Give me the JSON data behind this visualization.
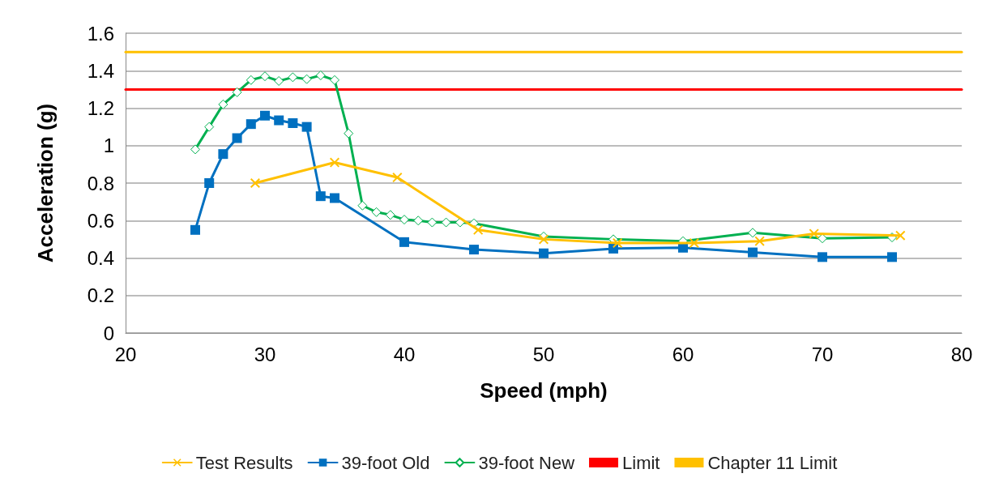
{
  "chart_data": {
    "type": "line",
    "xlabel": "Speed (mph)",
    "ylabel": "Acceleration (g)",
    "xlim": [
      20,
      80
    ],
    "xticks": [
      20,
      30,
      40,
      50,
      60,
      70,
      80
    ],
    "ylim": [
      0,
      1.6
    ],
    "yticks": [
      0,
      0.2,
      0.4,
      0.6,
      0.8,
      1,
      1.2,
      1.4,
      1.6
    ],
    "grid": "y",
    "legend": "bottom",
    "series": [
      {
        "name": "Test Results",
        "color": "#ffc000",
        "marker": "cross",
        "x": [
          29.3,
          35,
          39.5,
          45.3,
          50,
          55.3,
          60.8,
          65.5,
          69.4,
          75.6
        ],
        "values": [
          0.8,
          0.91,
          0.83,
          0.55,
          0.5,
          0.48,
          0.48,
          0.49,
          0.53,
          0.52
        ]
      },
      {
        "name": "39-foot Old",
        "color": "#0070c0",
        "marker": "square",
        "x": [
          25,
          26,
          27,
          28,
          29,
          30,
          31,
          32,
          33,
          34,
          35,
          40,
          45,
          50,
          55,
          60,
          65,
          70,
          75
        ],
        "values": [
          0.55,
          0.8,
          0.955,
          1.04,
          1.115,
          1.16,
          1.135,
          1.12,
          1.1,
          0.73,
          0.72,
          0.485,
          0.445,
          0.425,
          0.45,
          0.455,
          0.43,
          0.405,
          0.405
        ]
      },
      {
        "name": "39-foot New",
        "color": "#00b050",
        "marker": "diamond",
        "x": [
          25,
          26,
          27,
          28,
          29,
          30,
          31,
          32,
          33,
          34,
          35,
          36,
          37,
          38,
          39,
          40,
          41,
          42,
          43,
          44,
          45,
          50,
          55,
          60,
          65,
          70,
          75
        ],
        "values": [
          0.98,
          1.1,
          1.22,
          1.285,
          1.35,
          1.37,
          1.345,
          1.365,
          1.355,
          1.375,
          1.35,
          1.065,
          0.68,
          0.645,
          0.63,
          0.605,
          0.6,
          0.59,
          0.59,
          0.59,
          0.585,
          0.515,
          0.5,
          0.49,
          0.535,
          0.505,
          0.51
        ]
      },
      {
        "name": "Limit",
        "color": "#ff0000",
        "marker": "none",
        "x": [
          20,
          80
        ],
        "values": [
          1.3,
          1.3
        ]
      },
      {
        "name": "Chapter 11 Limit",
        "color": "#ffc000",
        "marker": "none",
        "x": [
          20,
          80
        ],
        "values": [
          1.5,
          1.5
        ]
      }
    ]
  }
}
